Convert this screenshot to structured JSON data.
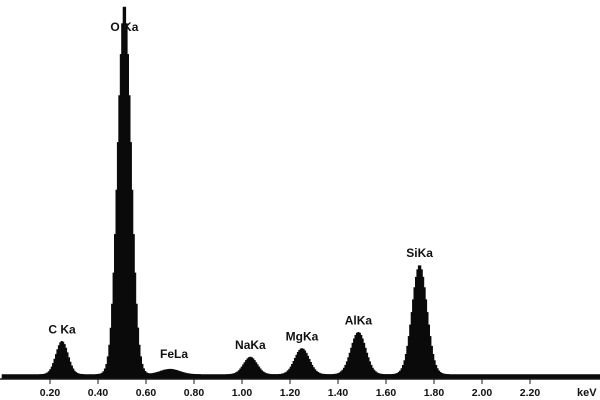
{
  "chart_data": {
    "type": "area",
    "title": "",
    "xlabel": "keV",
    "ylabel": "",
    "xlim": [
      0.0,
      2.4
    ],
    "ylim": [
      0,
      100
    ],
    "grid": false,
    "legend": "none",
    "x_ticks": [
      0.2,
      0.4,
      0.6,
      0.8,
      1.0,
      1.2,
      1.4,
      1.6,
      1.8,
      2.0,
      2.2
    ],
    "x_tick_labels": [
      "0.20",
      "0.40",
      "0.60",
      "0.80",
      "1.00",
      "1.20",
      "1.40",
      "1.60",
      "1.80",
      "2.00",
      "2.20"
    ],
    "baseline": 1.2,
    "series": [
      {
        "peaks": [
          {
            "label": "C Ka",
            "x": 0.25,
            "height": 8.8,
            "sigma": 0.025
          },
          {
            "label": "O Ka",
            "x": 0.51,
            "height": 98.0,
            "sigma": 0.028
          },
          {
            "label": "FeLa",
            "x": 0.7,
            "height": 1.4,
            "sigma": 0.04
          },
          {
            "label": "NaKa",
            "x": 1.035,
            "height": 4.6,
            "sigma": 0.028
          },
          {
            "label": "MgKa",
            "x": 1.25,
            "height": 6.9,
            "sigma": 0.03
          },
          {
            "label": "AlKa",
            "x": 1.485,
            "height": 11.2,
            "sigma": 0.031
          },
          {
            "label": "SiKa",
            "x": 1.74,
            "height": 29.0,
            "sigma": 0.031
          }
        ]
      }
    ]
  },
  "colors": {
    "fill": "#0a0a0a",
    "axis": "#1a1a1a",
    "text": "#111111",
    "background": "#ffffff"
  }
}
